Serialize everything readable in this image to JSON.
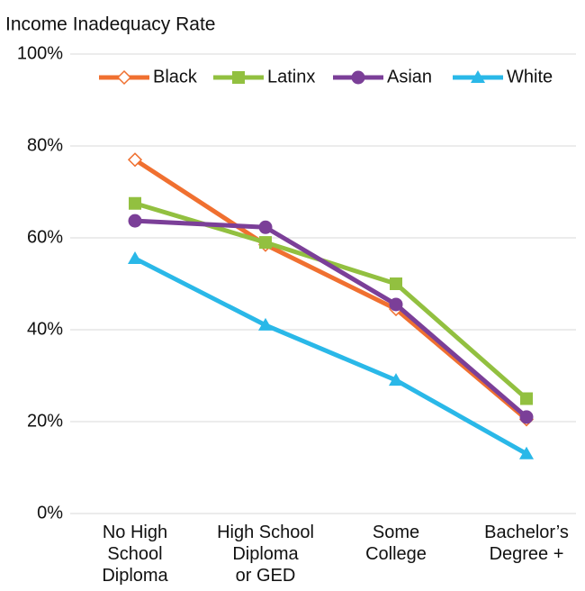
{
  "chart_data": {
    "type": "line",
    "title": "Income Inadequacy Rate",
    "categories": [
      "No High\nSchool\nDiploma",
      "High School\nDiploma\nor GED",
      "Some\nCollege",
      "Bachelor’s\nDegree +"
    ],
    "series": [
      {
        "name": "Black",
        "color": "#f07030",
        "marker": "diamond-open",
        "values": [
          77,
          58.5,
          44.5,
          20.5
        ]
      },
      {
        "name": "Latinx",
        "color": "#92c040",
        "marker": "square",
        "values": [
          67.5,
          59,
          50,
          25
        ]
      },
      {
        "name": "Asian",
        "color": "#7b3f98",
        "marker": "circle",
        "values": [
          63.7,
          62.3,
          45.5,
          21
        ]
      },
      {
        "name": "White",
        "color": "#2ab8e8",
        "marker": "triangle",
        "values": [
          55.5,
          41,
          29,
          13
        ]
      }
    ],
    "ylim": [
      0,
      100
    ],
    "yticks": [
      {
        "value": 0,
        "label": "0%"
      },
      {
        "value": 20,
        "label": "20%"
      },
      {
        "value": 40,
        "label": "40%"
      },
      {
        "value": 60,
        "label": "60%"
      },
      {
        "value": 80,
        "label": "80%"
      },
      {
        "value": 100,
        "label": "100%"
      }
    ],
    "grid": true,
    "legend": "top"
  }
}
